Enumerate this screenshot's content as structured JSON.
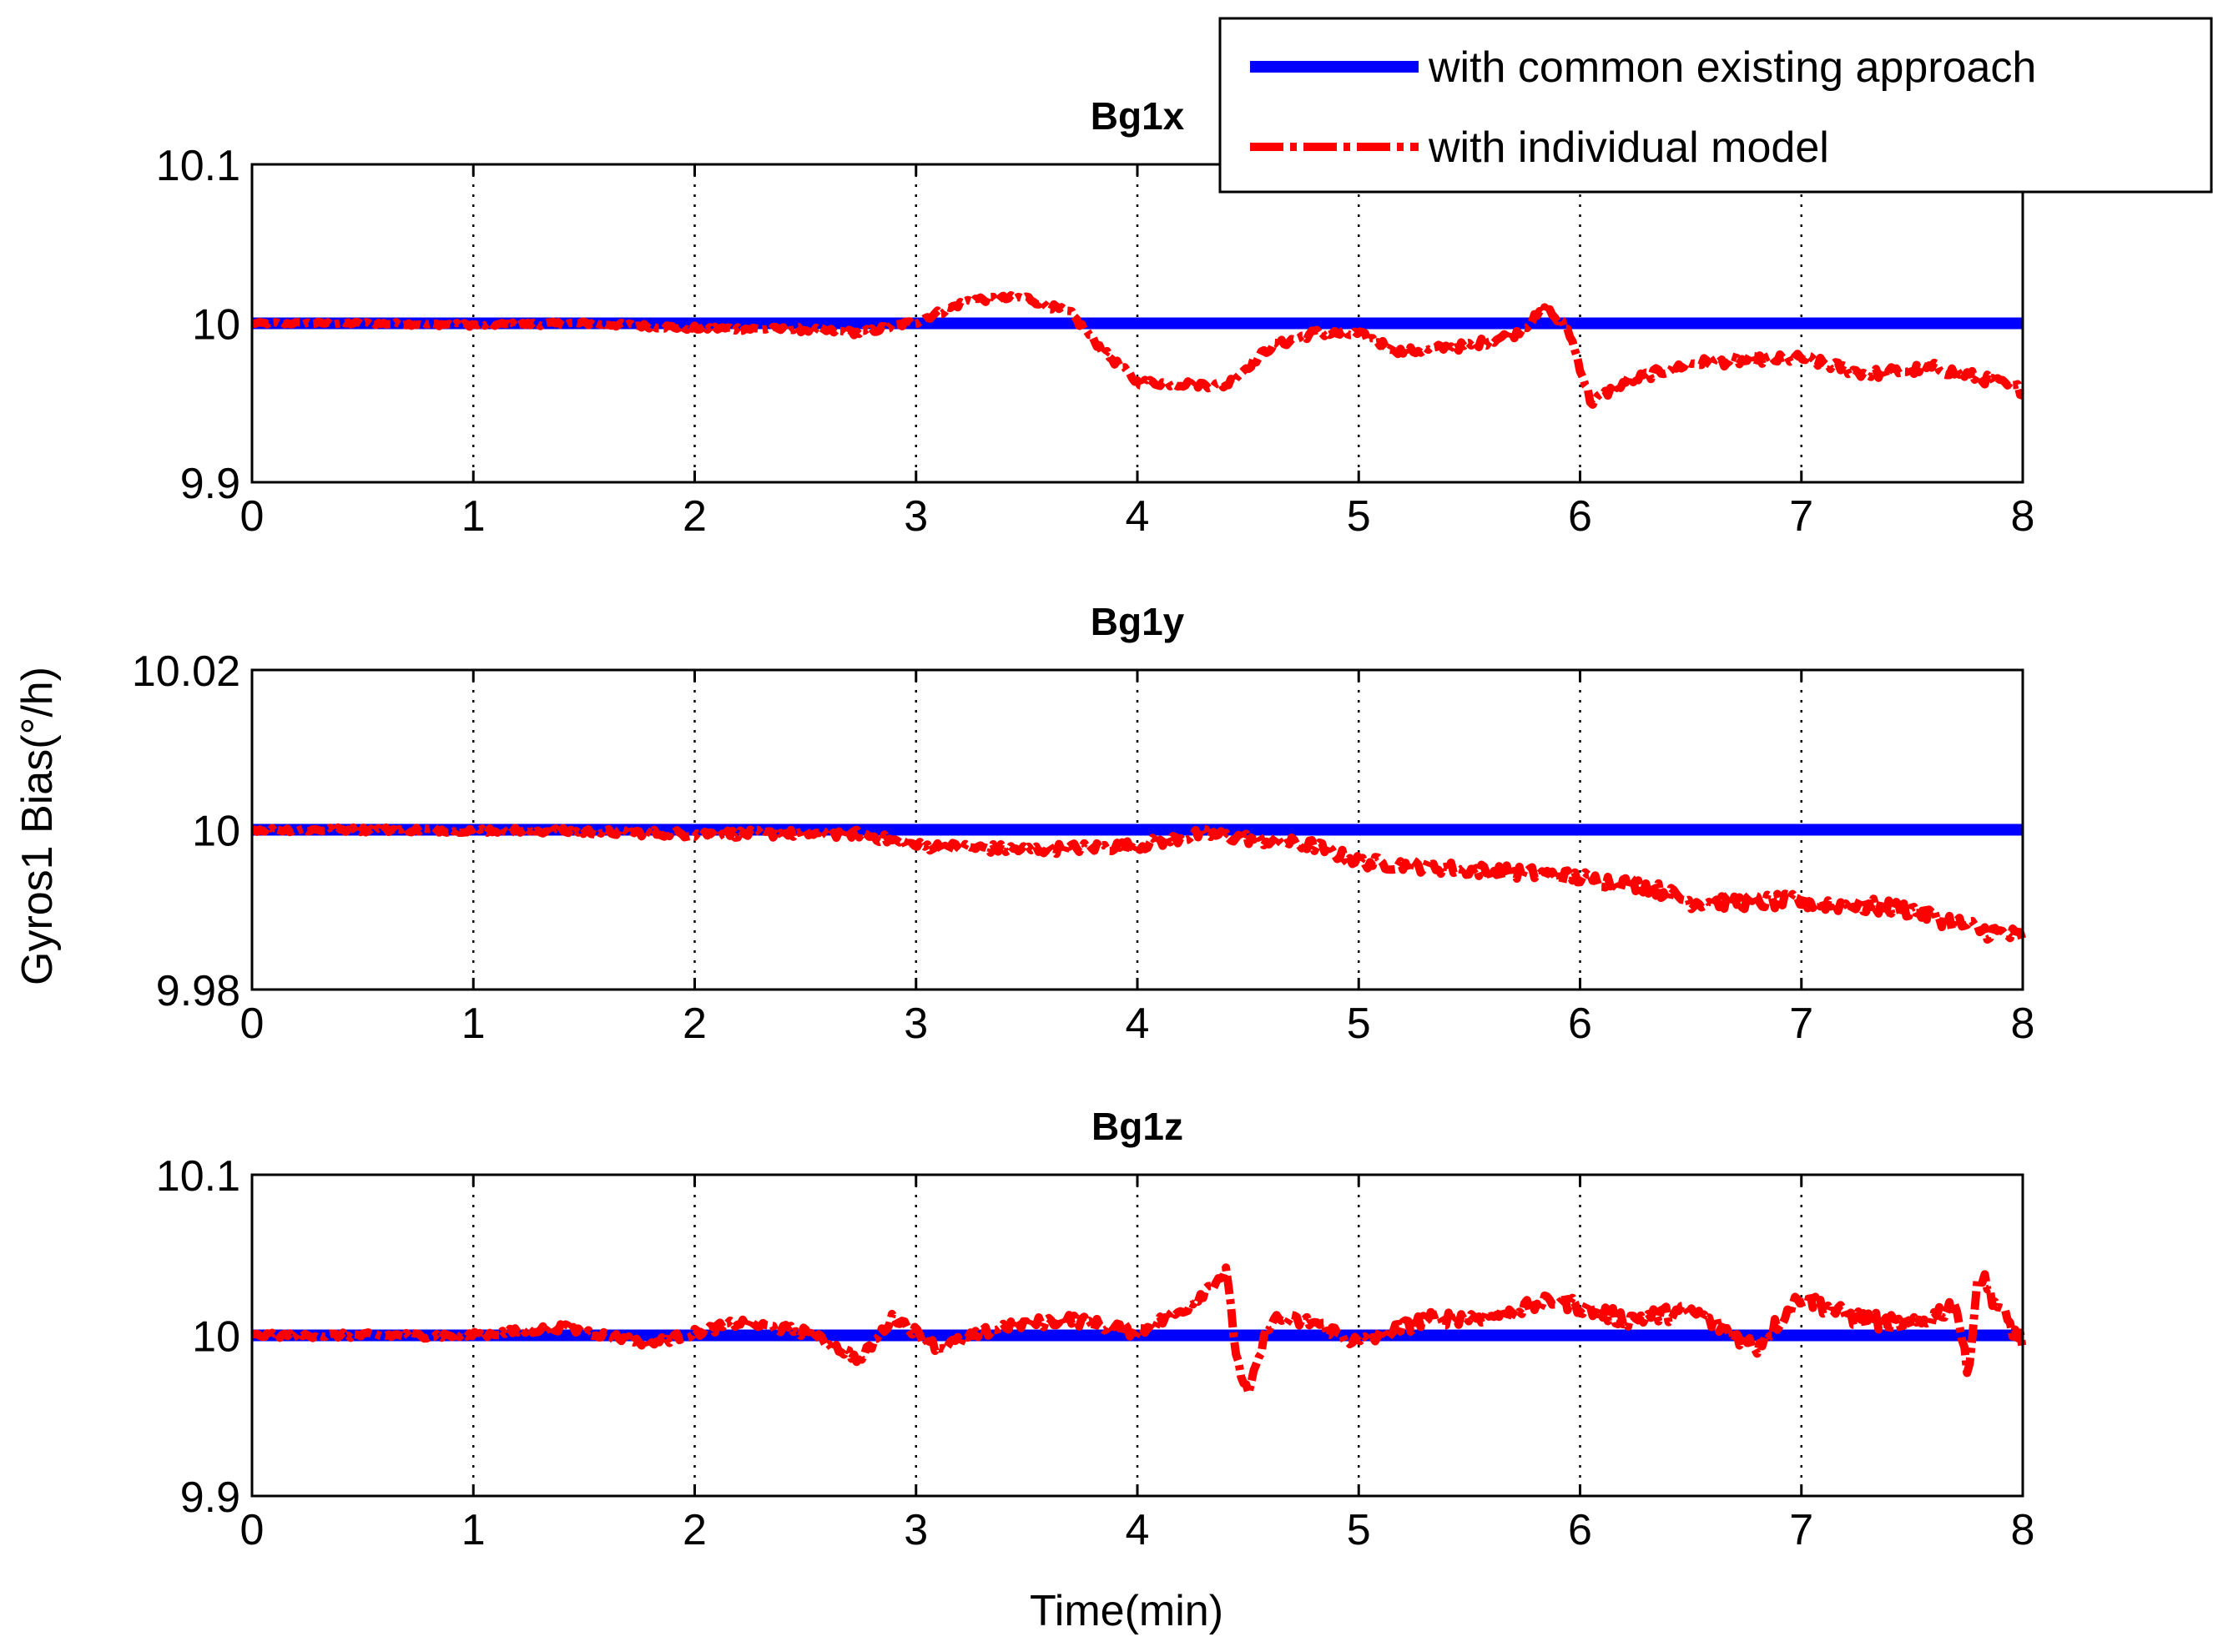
{
  "chart_data": {
    "type": "line",
    "ylabel": "Gyros1 Bias(°/h)",
    "xlabel": "Time(min)",
    "legend": {
      "placement": "top-right",
      "entries": [
        {
          "name": "with common existing approach",
          "color": "#0000ff",
          "style": "solid"
        },
        {
          "name": "with individual model",
          "color": "#ff0000",
          "style": "dash-dot"
        }
      ]
    },
    "subplots": [
      {
        "title": "Bg1x",
        "xlim": [
          0,
          8
        ],
        "ylim": [
          9.9,
          10.1
        ],
        "xticks": [
          "0",
          "1",
          "2",
          "3",
          "4",
          "5",
          "6",
          "7",
          "8"
        ],
        "yticks": [
          {
            "v": 10.1,
            "label": "10.1"
          },
          {
            "v": 10.0,
            "label": "10"
          },
          {
            "v": 9.9,
            "label": "9.9"
          }
        ],
        "grid": true,
        "series": [
          {
            "name": "with common existing approach",
            "x": [
              0,
              8
            ],
            "y": [
              10.0,
              10.0
            ]
          },
          {
            "name": "with individual model",
            "x": [
              0,
              0.5,
              1.0,
              1.5,
              2.0,
              2.5,
              2.75,
              3.0,
              3.25,
              3.5,
              3.7,
              3.85,
              4.0,
              4.2,
              4.4,
              4.6,
              4.8,
              5.0,
              5.2,
              5.5,
              5.7,
              5.85,
              5.95,
              6.05,
              6.2,
              6.5,
              7.0,
              7.3,
              7.6,
              7.8,
              8.0
            ],
            "y": [
              10.0,
              10.0,
              9.999,
              10.0,
              9.997,
              9.996,
              9.994,
              10.001,
              10.015,
              10.016,
              10.006,
              9.982,
              9.963,
              9.962,
              9.961,
              9.985,
              9.994,
              9.993,
              9.982,
              9.986,
              9.993,
              10.009,
              9.995,
              9.95,
              9.963,
              9.975,
              9.978,
              9.968,
              9.972,
              9.966,
              9.958
            ]
          }
        ]
      },
      {
        "title": "Bg1y",
        "xlim": [
          0,
          8
        ],
        "ylim": [
          9.98,
          10.02
        ],
        "xticks": [
          "0",
          "1",
          "2",
          "3",
          "4",
          "5",
          "6",
          "7",
          "8"
        ],
        "yticks": [
          {
            "v": 10.02,
            "label": "10.02"
          },
          {
            "v": 10.0,
            "label": "10"
          },
          {
            "v": 9.98,
            "label": "9.98"
          }
        ],
        "grid": true,
        "series": [
          {
            "name": "with common existing approach",
            "x": [
              0,
              8
            ],
            "y": [
              10.0,
              10.0
            ]
          },
          {
            "name": "with individual model",
            "x": [
              0,
              1.0,
              2.0,
              2.75,
              3.0,
              3.5,
              4.0,
              4.3,
              4.8,
              5.0,
              5.5,
              5.8,
              6.0,
              6.3,
              6.5,
              7.0,
              7.5,
              7.8,
              8.0
            ],
            "y": [
              10.0,
              10.0,
              9.9995,
              9.9995,
              9.998,
              9.9975,
              9.998,
              9.9995,
              9.998,
              9.996,
              9.995,
              9.9945,
              9.994,
              9.993,
              9.991,
              9.991,
              9.99,
              9.9875,
              9.9865
            ]
          }
        ]
      },
      {
        "title": "Bg1z",
        "xlim": [
          0,
          8
        ],
        "ylim": [
          9.9,
          10.1
        ],
        "xticks": [
          "0",
          "1",
          "2",
          "3",
          "4",
          "5",
          "6",
          "7",
          "8"
        ],
        "yticks": [
          {
            "v": 10.1,
            "label": "10.1"
          },
          {
            "v": 10.0,
            "label": "10"
          },
          {
            "v": 9.9,
            "label": "9.9"
          }
        ],
        "grid": true,
        "series": [
          {
            "name": "with common existing approach",
            "x": [
              0,
              8
            ],
            "y": [
              10.0,
              10.0
            ]
          },
          {
            "name": "with individual model",
            "x": [
              0,
              0.6,
              1.0,
              1.4,
              1.8,
              2.2,
              2.5,
              2.75,
              2.9,
              3.1,
              3.4,
              3.7,
              4.0,
              4.2,
              4.4,
              4.45,
              4.5,
              4.6,
              4.8,
              5.0,
              5.3,
              5.6,
              5.9,
              6.2,
              6.5,
              6.8,
              7.0,
              7.2,
              7.5,
              7.7,
              7.75,
              7.8,
              7.9,
              8.0
            ],
            "y": [
              10.0,
              10.0,
              10.0,
              10.005,
              9.995,
              10.008,
              10.002,
              9.985,
              10.012,
              9.992,
              10.006,
              10.01,
              10.002,
              10.015,
              10.04,
              9.985,
              9.962,
              10.01,
              10.008,
              9.995,
              10.01,
              10.012,
              10.022,
              10.01,
              10.015,
              9.993,
              10.025,
              10.012,
              10.005,
              10.02,
              9.975,
              10.04,
              10.015,
              9.995
            ]
          }
        ]
      }
    ]
  }
}
